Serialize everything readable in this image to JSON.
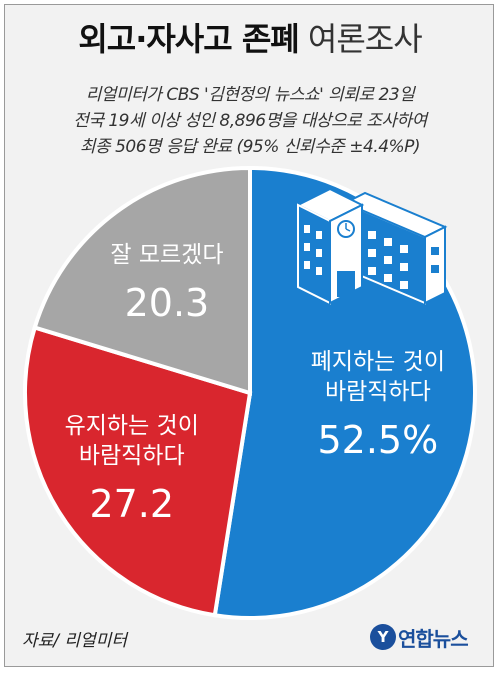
{
  "header": {
    "title_bold": "외고·자사고 존폐",
    "title_light": "여론조사",
    "subtitle_lines": [
      "리얼미터가 CBS '김현정의 뉴스쇼' 의뢰로 23일",
      "전국 19세 이상 성인 8,896명을 대상으로 조사하여",
      "최종 506명 응답 완료 (95% 신뢰수준 ±4.4%P)"
    ]
  },
  "chart_data": {
    "type": "pie",
    "title": "외고·자사고 존폐 여론조사",
    "slices": [
      {
        "label_lines": [
          "폐지하는 것이",
          "바람직하다"
        ],
        "value": 52.5,
        "value_text": "52.5%",
        "color": "#1a7fcf"
      },
      {
        "label_lines": [
          "유지하는 것이",
          "바람직하다"
        ],
        "value": 27.2,
        "value_text": "27.2",
        "color": "#d9262e"
      },
      {
        "label_lines": [
          "잘 모르겠다"
        ],
        "value": 20.3,
        "value_text": "20.3",
        "color": "#a6a6a6"
      }
    ]
  },
  "icon": {
    "name": "school-building-icon",
    "color": "#1a7fcf"
  },
  "footer": {
    "source": "자료/ 리얼미터",
    "logo_mark": "Y",
    "logo_text": "연합뉴스"
  }
}
